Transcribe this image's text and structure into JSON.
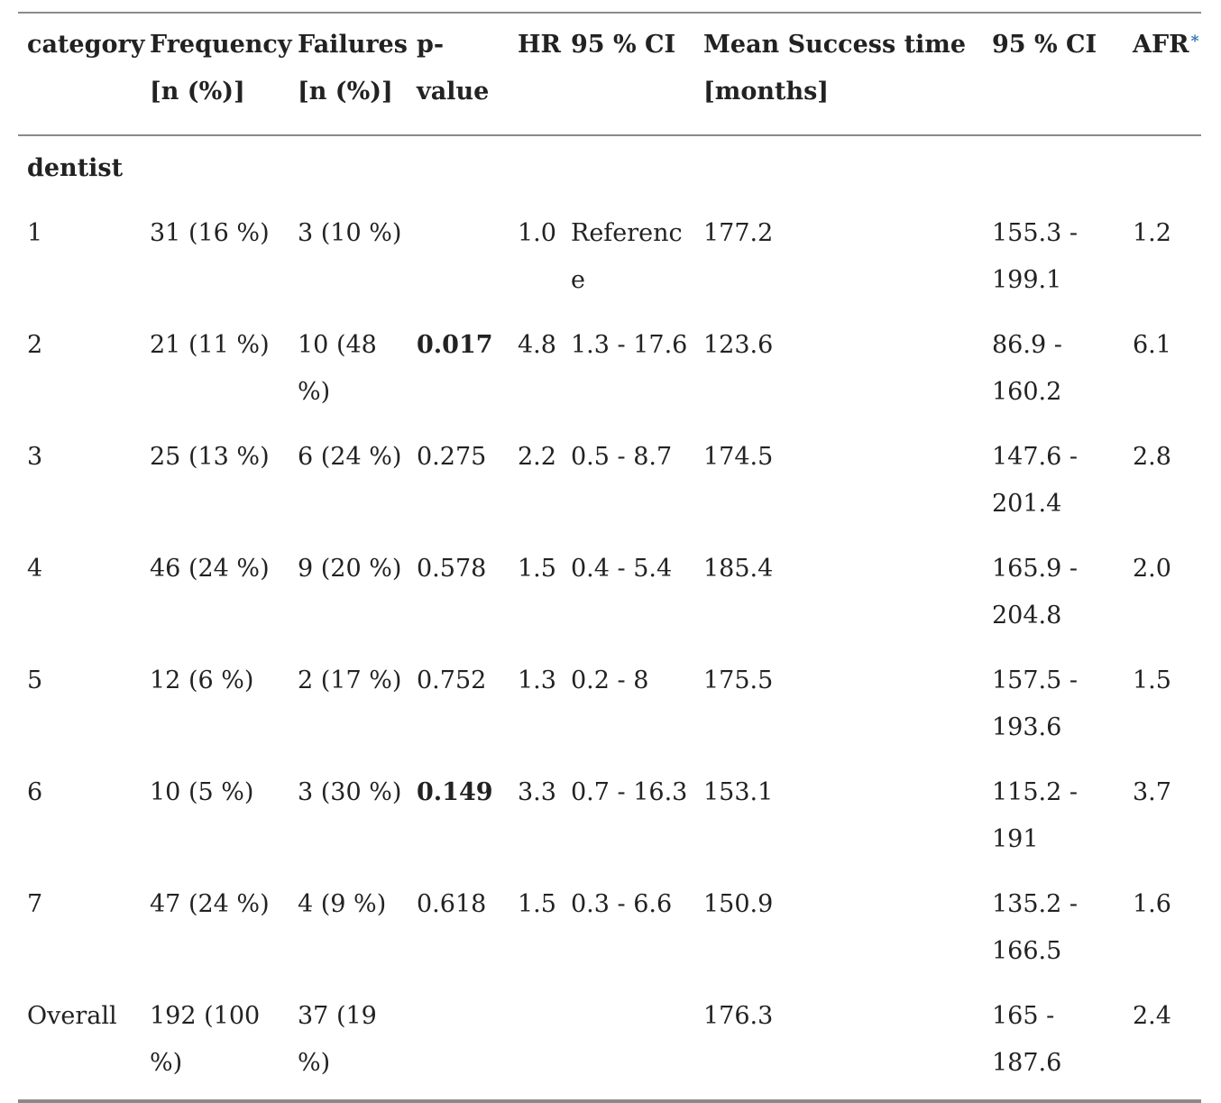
{
  "table": {
    "headers": {
      "category": "category",
      "frequency": "Frequency [n (%)]",
      "failures": "Failures [n (%)]",
      "p_value": "p-value",
      "hr": "HR",
      "ci": "95 % CI",
      "mean_success": "Mean Success time [months]",
      "ci2": "95 % CI",
      "afr": "AFR",
      "afr_mark": "*"
    },
    "group_label": "dentist",
    "rows": [
      {
        "category": "1",
        "frequency": "31 (16 %)",
        "failures": "3 (10 %)",
        "p_value": "",
        "p_bold": false,
        "hr": "1.0",
        "ci": "Reference",
        "mean": "177.2",
        "ci2": "155.3 - 199.1",
        "afr": "1.2"
      },
      {
        "category": "2",
        "frequency": "21 (11 %)",
        "failures": "10 (48 %)",
        "p_value": "0.017",
        "p_bold": true,
        "hr": "4.8",
        "ci": "1.3 - 17.6",
        "mean": "123.6",
        "ci2": "86.9 - 160.2",
        "afr": "6.1"
      },
      {
        "category": "3",
        "frequency": "25 (13 %)",
        "failures": "6 (24 %)",
        "p_value": "0.275",
        "p_bold": false,
        "hr": "2.2",
        "ci": "0.5 - 8.7",
        "mean": "174.5",
        "ci2": "147.6 - 201.4",
        "afr": "2.8"
      },
      {
        "category": "4",
        "frequency": "46 (24 %)",
        "failures": "9 (20 %)",
        "p_value": "0.578",
        "p_bold": false,
        "hr": "1.5",
        "ci": "0.4 - 5.4",
        "mean": "185.4",
        "ci2": "165.9 - 204.8",
        "afr": "2.0"
      },
      {
        "category": "5",
        "frequency": "12 (6 %)",
        "failures": "2 (17 %)",
        "p_value": "0.752",
        "p_bold": false,
        "hr": "1.3",
        "ci": "0.2 - 8",
        "mean": "175.5",
        "ci2": "157.5 - 193.6",
        "afr": "1.5"
      },
      {
        "category": "6",
        "frequency": "10 (5 %)",
        "failures": "3 (30 %)",
        "p_value": "0.149",
        "p_bold": true,
        "hr": "3.3",
        "ci": "0.7 - 16.3",
        "mean": "153.1",
        "ci2": "115.2 - 191",
        "afr": "3.7"
      },
      {
        "category": "7",
        "frequency": "47 (24 %)",
        "failures": "4 (9 %)",
        "p_value": "0.618",
        "p_bold": false,
        "hr": "1.5",
        "ci": "0.3 - 6.6",
        "mean": "150.9",
        "ci2": "135.2 - 166.5",
        "afr": "1.6"
      },
      {
        "category": "Overall",
        "frequency": "192 (100 %)",
        "failures": "37 (19 %)",
        "p_value": "",
        "p_bold": false,
        "hr": "",
        "ci": "",
        "mean": "176.3",
        "ci2": "165 - 187.6",
        "afr": "2.4"
      }
    ]
  }
}
